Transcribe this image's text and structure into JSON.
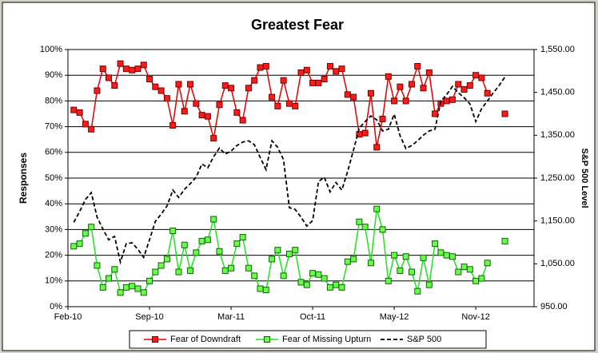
{
  "chart_data": {
    "type": "line",
    "title": "Greatest Fear",
    "ylabel": "Responses",
    "y2label": "S&P 500 Level",
    "categories": [
      "Feb-10",
      null,
      null,
      null,
      null,
      null,
      null,
      null,
      null,
      null,
      null,
      null,
      null,
      null,
      "Sep-10",
      null,
      null,
      null,
      null,
      null,
      null,
      null,
      null,
      null,
      null,
      null,
      null,
      null,
      "Mar-11",
      null,
      null,
      null,
      null,
      null,
      null,
      null,
      null,
      null,
      null,
      null,
      null,
      null,
      "Oct-11",
      null,
      null,
      null,
      null,
      null,
      null,
      null,
      null,
      null,
      null,
      null,
      null,
      null,
      "May-12",
      null,
      null,
      null,
      null,
      null,
      null,
      null,
      null,
      null,
      null,
      null,
      null,
      null,
      "Nov-12",
      null,
      null,
      null,
      null,
      null,
      null,
      null,
      null,
      null
    ],
    "series": [
      {
        "name": "Fear of Downdraft",
        "color": "#e00000",
        "marker_color": "#ff1a1a",
        "marker_edge": "#700000",
        "values": [
          null,
          76.5,
          75.5,
          71,
          69,
          84,
          92.5,
          89,
          86,
          94.5,
          92.5,
          92,
          92.5,
          94,
          88.5,
          85.5,
          84,
          81,
          70.5,
          86.5,
          76,
          86.5,
          79,
          74.5,
          74,
          65.5,
          78.5,
          86,
          85,
          75.5,
          72.5,
          85,
          88,
          93,
          93.5,
          81.5,
          78,
          88,
          79,
          78,
          91,
          92,
          87,
          87,
          88.5,
          93.5,
          91.5,
          92.5,
          82.5,
          81.5,
          67,
          67.5,
          83,
          62,
          73,
          89.5,
          80,
          85.5,
          80,
          86.5,
          93.5,
          85,
          91,
          75,
          79,
          80,
          80.5,
          86.5,
          84.5,
          86,
          90,
          89,
          83,
          null,
          null,
          75,
          null,
          null,
          null,
          null
        ]
      },
      {
        "name": "Fear of Missing Upturn",
        "color": "#22e022",
        "marker_color": "#66ff44",
        "marker_edge": "#106010",
        "values": [
          null,
          23.5,
          24.5,
          28.5,
          31,
          16,
          7.5,
          11,
          14.5,
          5.5,
          7.5,
          8,
          7,
          5.5,
          10,
          13.5,
          16,
          18.5,
          29.5,
          13.5,
          24,
          14,
          21,
          25.5,
          26,
          34,
          21.5,
          14,
          15,
          24.5,
          27,
          15,
          12,
          7,
          6.5,
          18.5,
          22,
          12,
          20.5,
          22,
          9.5,
          8.5,
          13,
          12.5,
          11,
          7.5,
          8.5,
          7.5,
          17.5,
          18.5,
          33,
          31,
          17,
          38,
          30,
          10,
          20,
          14,
          19.5,
          13.5,
          6,
          19,
          8.5,
          24.5,
          21,
          20,
          19.5,
          13.5,
          15.5,
          14.5,
          10,
          11,
          17,
          null,
          null,
          25.5,
          null,
          null,
          null,
          null
        ]
      },
      {
        "name": "S&P 500",
        "color": "#000000",
        "axis": "y2",
        "dashed": true,
        "values": [
          null,
          1147,
          1172,
          1200,
          1216,
          1159,
          1131,
          1106,
          1114,
          1054,
          1097,
          1099,
          1084,
          1065,
          1106,
          1149,
          1166,
          1185,
          1222,
          1205,
          1224,
          1237,
          1252,
          1283,
          1274,
          1300,
          1320,
          1306,
          1313,
          1326,
          1334,
          1337,
          1328,
          1298,
          1270,
          1337,
          1322,
          1293,
          1181,
          1177,
          1159,
          1138,
          1151,
          1242,
          1252,
          1218,
          1240,
          1222,
          1265,
          1315,
          1367,
          1382,
          1395,
          1386,
          1360,
          1364,
          1399,
          1349,
          1319,
          1326,
          1337,
          1350,
          1360,
          1364,
          1429,
          1445,
          1464,
          1449,
          1438,
          1423,
          1382,
          1412,
          1430,
          1449,
          1466,
          1486,
          null,
          null,
          null,
          null
        ]
      }
    ],
    "ylim": [
      0,
      100
    ],
    "yticks": [
      {
        "value": 0,
        "label": "0%"
      },
      {
        "value": 10,
        "label": "10%"
      },
      {
        "value": 20,
        "label": "20%"
      },
      {
        "value": 30,
        "label": "30%"
      },
      {
        "value": 40,
        "label": "40%"
      },
      {
        "value": 50,
        "label": "50%"
      },
      {
        "value": 60,
        "label": "60%"
      },
      {
        "value": 70,
        "label": "70%"
      },
      {
        "value": 80,
        "label": "80%"
      },
      {
        "value": 90,
        "label": "90%"
      },
      {
        "value": 100,
        "label": "100%"
      }
    ],
    "y2lim": [
      950,
      1550
    ],
    "y2ticks": [
      {
        "value": 950,
        "label": "950.00"
      },
      {
        "value": 1050,
        "label": "1,050.00"
      },
      {
        "value": 1150,
        "label": "1,150.00"
      },
      {
        "value": 1250,
        "label": "1,250.00"
      },
      {
        "value": 1350,
        "label": "1,350.00"
      },
      {
        "value": 1450,
        "label": "1,450.00"
      },
      {
        "value": 1550,
        "label": "1,550.00"
      }
    ],
    "grid": true,
    "legend": "bottom"
  }
}
